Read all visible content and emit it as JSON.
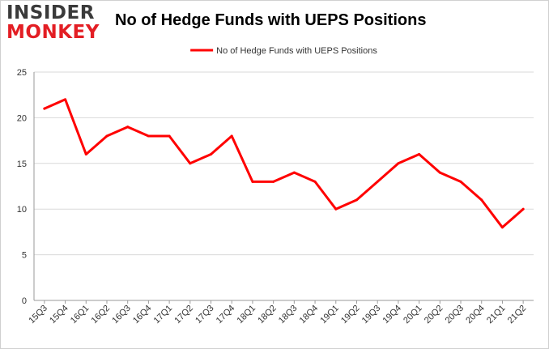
{
  "logo": {
    "line1": "INSIDER",
    "line2": "MONKEY"
  },
  "colors": {
    "series": "#ff0000",
    "grid": "#d9d9d9",
    "axis": "#9a9a9a",
    "logo_dark": "#3a3a3a",
    "logo_red": "#e31e24"
  },
  "chart_data": {
    "type": "line",
    "title": "No of Hedge Funds with UEPS Positions",
    "xlabel": "",
    "ylabel": "",
    "ylim": [
      0,
      25
    ],
    "yticks": [
      0,
      5,
      10,
      15,
      20,
      25
    ],
    "grid": true,
    "legend_position": "top-center",
    "categories": [
      "15Q3",
      "15Q4",
      "16Q1",
      "16Q2",
      "16Q3",
      "16Q4",
      "17Q1",
      "17Q2",
      "17Q3",
      "17Q4",
      "18Q1",
      "18Q2",
      "18Q3",
      "18Q4",
      "19Q1",
      "19Q2",
      "19Q3",
      "19Q4",
      "20Q1",
      "20Q2",
      "20Q3",
      "20Q4",
      "21Q1",
      "21Q2"
    ],
    "series": [
      {
        "name": "No of Hedge Funds with UEPS Positions",
        "values": [
          21,
          22,
          16,
          18,
          19,
          18,
          18,
          15,
          16,
          18,
          13,
          13,
          14,
          13,
          10,
          11,
          13,
          15,
          16,
          14,
          13,
          11,
          8,
          10
        ]
      }
    ]
  }
}
